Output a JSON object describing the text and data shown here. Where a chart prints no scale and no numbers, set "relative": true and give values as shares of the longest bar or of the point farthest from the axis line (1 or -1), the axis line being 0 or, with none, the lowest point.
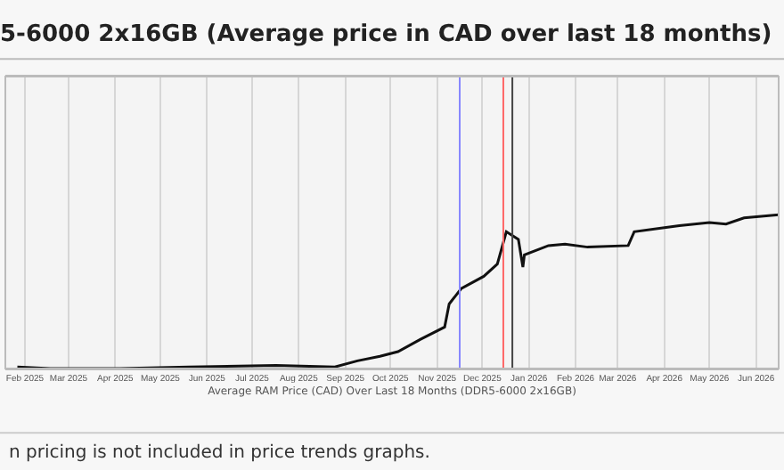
{
  "chart_data": {
    "type": "line",
    "title": "5-6000 2x16GB (Average price in CAD over last 18 months)",
    "xlabel": "Average RAM Price (CAD) Over Last 18 Months (DDR5-6000 2x16GB)",
    "annotations": [
      "n pricing is not included in price trends graphs."
    ],
    "relative": true,
    "grid": "x",
    "marker": "none",
    "line_style": "solid",
    "x": [
      "2025-02-09",
      "2025-03-03",
      "2025-04-18",
      "2025-06-03",
      "2025-07-31",
      "2025-09-08",
      "2025-09-23",
      "2025-10-08",
      "2025-10-20",
      "2025-11-04",
      "2025-11-20",
      "2025-11-23",
      "2025-12-01",
      "2025-12-16",
      "2025-12-25",
      "2025-12-31",
      "2026-01-08",
      "2026-01-11",
      "2026-01-12",
      "2026-01-28",
      "2026-02-08",
      "2026-02-23",
      "2026-03-22",
      "2026-03-26",
      "2026-04-25",
      "2026-05-15",
      "2026-05-26",
      "2026-06-07",
      "2026-06-30"
    ],
    "series": [
      {
        "color": "#111111",
        "values": [
          0.01,
          0,
          0,
          0.01,
          0.02,
          0.01,
          0.05,
          0.08,
          0.11,
          0.19,
          0.27,
          0.42,
          0.52,
          0.6,
          0.68,
          0.89,
          0.84,
          0.66,
          0.74,
          0.8,
          0.81,
          0.79,
          0.8,
          0.89,
          0.93,
          0.95,
          0.94,
          0.98,
          1.0
        ]
      }
    ],
    "xlim": [
      "2025-02-01",
      "2026-06-30"
    ],
    "xticks": [
      {
        "value": "2025-02-14",
        "label": "Feb 2025"
      },
      {
        "value": "2025-03-15",
        "label": "Mar 2025"
      },
      {
        "value": "2025-04-15",
        "label": "Apr 2025"
      },
      {
        "value": "2025-05-15",
        "label": "May 2025"
      },
      {
        "value": "2025-06-15",
        "label": "Jun 2025"
      },
      {
        "value": "2025-07-15",
        "label": "Jul 2025"
      },
      {
        "value": "2025-08-15",
        "label": "Aug 2025"
      },
      {
        "value": "2025-09-15",
        "label": "Sep 2025"
      },
      {
        "value": "2025-10-15",
        "label": "Oct 2025"
      },
      {
        "value": "2025-11-15",
        "label": "Nov 2025"
      },
      {
        "value": "2025-12-15",
        "label": "Dec 2025"
      },
      {
        "value": "2026-01-15",
        "label": "Jan 2026"
      },
      {
        "value": "2026-02-15",
        "label": "Feb 2026"
      },
      {
        "value": "2026-03-15",
        "label": "Mar 2026"
      },
      {
        "value": "2026-04-15",
        "label": "Apr 2026"
      },
      {
        "value": "2026-05-15",
        "label": "May 2026"
      },
      {
        "value": "2026-06-15",
        "label": "Jun 2026"
      }
    ],
    "ref_lines": [
      {
        "axis": "x",
        "value": "2025-11-30",
        "color": "#8888ff"
      },
      {
        "axis": "x",
        "value": "2025-12-29",
        "color": "#ff6666"
      },
      {
        "axis": "x",
        "value": "2026-01-04",
        "color": "#444444"
      }
    ]
  }
}
